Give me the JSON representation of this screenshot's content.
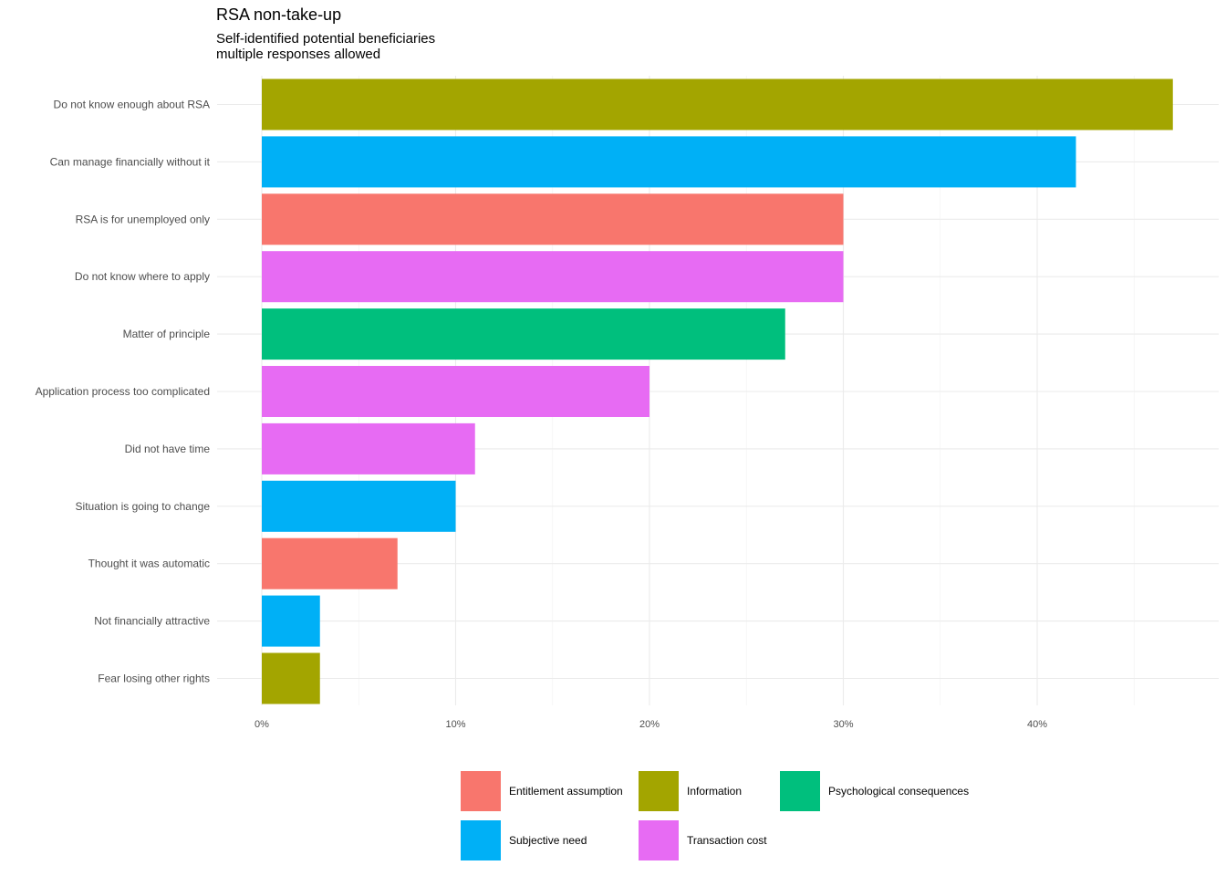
{
  "chart_data": {
    "type": "bar",
    "orientation": "horizontal",
    "title": "RSA non-take-up",
    "subtitle_lines": [
      "Self-identified potential beneficiaries",
      "multiple responses allowed"
    ],
    "xlabel": "",
    "ylabel": "",
    "xlim": [
      0,
      0.47
    ],
    "x_ticks": [
      0,
      0.1,
      0.2,
      0.3,
      0.4
    ],
    "x_tick_labels": [
      "0%",
      "10%",
      "20%",
      "30%",
      "40%"
    ],
    "grid": true,
    "legend_position": "bottom",
    "categories": [
      "Do not know enough about RSA",
      "Can manage financially without it",
      "RSA is for unemployed only",
      "Do not know where to apply",
      "Matter of principle",
      "Application process too complicated",
      "Did not have time",
      "Situation is going to change",
      "Thought it was automatic",
      "Not financially attractive",
      "Fear losing other rights"
    ],
    "values": [
      0.47,
      0.42,
      0.3,
      0.3,
      0.27,
      0.2,
      0.11,
      0.1,
      0.07,
      0.03,
      0.03
    ],
    "groups": [
      "Information",
      "Subjective need",
      "Entitlement assumption",
      "Transaction cost",
      "Psychological consequences",
      "Transaction cost",
      "Transaction cost",
      "Subjective need",
      "Entitlement assumption",
      "Subjective need",
      "Information"
    ],
    "legend": [
      {
        "name": "Entitlement assumption",
        "color": "#F8766D"
      },
      {
        "name": "Information",
        "color": "#A3A500"
      },
      {
        "name": "Psychological consequences",
        "color": "#00BF7D"
      },
      {
        "name": "Subjective need",
        "color": "#00B0F6"
      },
      {
        "name": "Transaction cost",
        "color": "#E76BF3"
      }
    ]
  }
}
